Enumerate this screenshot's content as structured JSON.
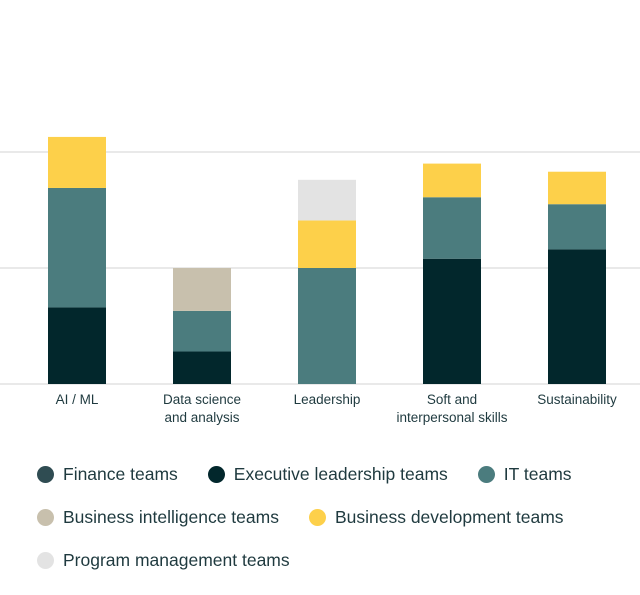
{
  "chart_data": {
    "type": "bar",
    "stacked": true,
    "title": "",
    "xlabel": "",
    "ylabel": "",
    "ylim": [
      0,
      20
    ],
    "yticks": [
      0,
      10,
      20
    ],
    "grid": true,
    "legend_position": "bottom",
    "categories": [
      [
        "AI / ML"
      ],
      [
        "Data science",
        "and analysis"
      ],
      [
        "Leadership"
      ],
      [
        "Soft and",
        "interpersonal skills"
      ],
      [
        "Sustainability"
      ]
    ],
    "series": [
      {
        "name": "Finance teams",
        "color": "#2f4c52",
        "values": [
          0,
          0,
          0,
          0,
          0
        ]
      },
      {
        "name": "Executive leadership teams",
        "color": "#02272c",
        "values": [
          6.6,
          2.8,
          0,
          10.8,
          11.6
        ]
      },
      {
        "name": "IT teams",
        "color": "#4b7c7e",
        "values": [
          10.3,
          3.5,
          10.0,
          5.3,
          3.9
        ]
      },
      {
        "name": "Business intelligence teams",
        "color": "#c8c0ad",
        "values": [
          0,
          3.7,
          0,
          0,
          0
        ]
      },
      {
        "name": "Business development teams",
        "color": "#fdd04a",
        "values": [
          4.4,
          0,
          4.1,
          2.9,
          2.8
        ]
      },
      {
        "name": "Program management teams",
        "color": "#e3e3e3",
        "values": [
          0,
          0,
          3.5,
          0,
          0
        ]
      }
    ]
  }
}
